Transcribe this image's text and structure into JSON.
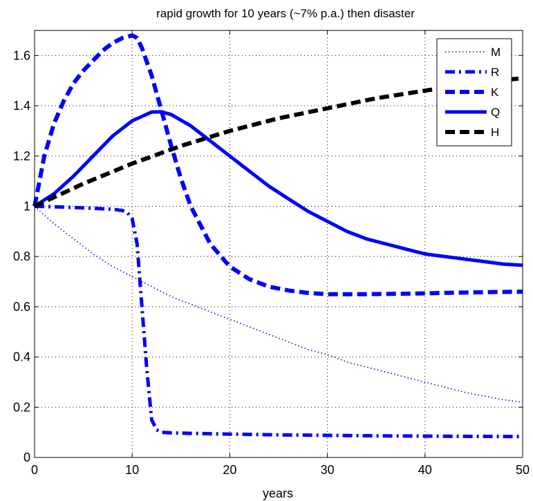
{
  "chart_data": {
    "type": "line",
    "title": "rapid growth for 10 years (~7% p.a.) then disaster",
    "xlabel": "years",
    "ylabel": "",
    "xlim": [
      0,
      50
    ],
    "ylim": [
      0,
      1.7
    ],
    "xticks": [
      0,
      10,
      20,
      30,
      40,
      50
    ],
    "yticks": [
      0,
      0.2,
      0.4,
      0.6,
      0.8,
      1,
      1.2,
      1.4,
      1.6
    ],
    "ytick_labels": [
      "0",
      "0.2",
      "0.4",
      "0.6",
      "0.8",
      "1",
      "1.2",
      "1.4",
      "1.6"
    ],
    "xtick_labels": [
      "0",
      "10",
      "20",
      "30",
      "40",
      "50"
    ],
    "grid": true,
    "legend_placement": "top-right",
    "series": [
      {
        "name": "M",
        "style": "dotted",
        "color": "#0000ff",
        "x": [
          0,
          2,
          4,
          6,
          8,
          10,
          12,
          14,
          16,
          18,
          20,
          22,
          24,
          26,
          28,
          30,
          32,
          34,
          36,
          38,
          40,
          42,
          44,
          46,
          48,
          50
        ],
        "y": [
          1.0,
          0.93,
          0.87,
          0.81,
          0.76,
          0.72,
          0.68,
          0.64,
          0.61,
          0.58,
          0.55,
          0.52,
          0.49,
          0.46,
          0.43,
          0.41,
          0.38,
          0.36,
          0.34,
          0.32,
          0.3,
          0.28,
          0.26,
          0.245,
          0.23,
          0.22
        ]
      },
      {
        "name": "R",
        "style": "dashdot",
        "color": "#0000ff",
        "x": [
          0,
          2,
          4,
          6,
          8,
          9,
          9.5,
          10,
          10.5,
          11,
          11.5,
          12,
          12.5,
          13,
          14,
          16,
          20,
          25,
          30,
          35,
          40,
          45,
          50
        ],
        "y": [
          1.0,
          0.998,
          0.995,
          0.992,
          0.988,
          0.983,
          0.975,
          0.95,
          0.85,
          0.6,
          0.35,
          0.15,
          0.11,
          0.1,
          0.098,
          0.096,
          0.093,
          0.09,
          0.088,
          0.086,
          0.085,
          0.084,
          0.083
        ]
      },
      {
        "name": "K",
        "style": "dashed",
        "color": "#0000ff",
        "x": [
          0,
          0.5,
          1,
          2,
          3,
          4,
          5,
          6,
          7,
          8,
          9,
          10,
          10.5,
          11,
          12,
          13,
          14,
          15,
          16,
          18,
          20,
          22,
          24,
          26,
          28,
          30,
          34,
          38,
          42,
          46,
          50
        ],
        "y": [
          1.0,
          1.1,
          1.2,
          1.33,
          1.42,
          1.49,
          1.54,
          1.58,
          1.62,
          1.65,
          1.67,
          1.68,
          1.67,
          1.63,
          1.52,
          1.38,
          1.24,
          1.11,
          1.0,
          0.85,
          0.76,
          0.71,
          0.68,
          0.665,
          0.655,
          0.65,
          0.65,
          0.652,
          0.655,
          0.658,
          0.66
        ]
      },
      {
        "name": "Q",
        "style": "solid",
        "color": "#0000ff",
        "x": [
          0,
          2,
          4,
          6,
          8,
          10,
          12,
          13,
          14,
          16,
          18,
          20,
          22,
          24,
          26,
          28,
          30,
          32,
          34,
          36,
          38,
          40,
          42,
          44,
          46,
          48,
          50
        ],
        "y": [
          1.0,
          1.05,
          1.12,
          1.2,
          1.28,
          1.34,
          1.375,
          1.376,
          1.365,
          1.32,
          1.26,
          1.2,
          1.14,
          1.08,
          1.03,
          0.98,
          0.94,
          0.9,
          0.87,
          0.85,
          0.83,
          0.81,
          0.8,
          0.79,
          0.78,
          0.77,
          0.765
        ]
      },
      {
        "name": "H",
        "style": "dashed",
        "color": "#000000",
        "x": [
          0,
          5,
          10,
          15,
          20,
          25,
          30,
          35,
          40,
          45,
          50
        ],
        "y": [
          1.0,
          1.09,
          1.17,
          1.24,
          1.3,
          1.35,
          1.39,
          1.43,
          1.46,
          1.49,
          1.51
        ]
      }
    ]
  }
}
